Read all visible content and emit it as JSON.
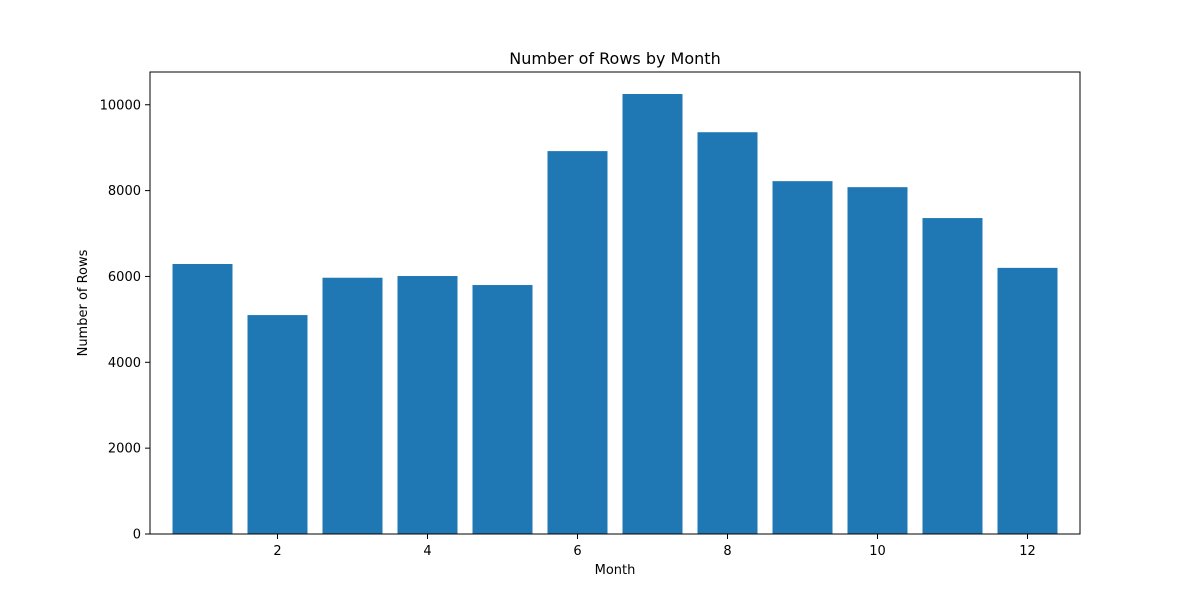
{
  "chart_data": {
    "type": "bar",
    "title": "Number of Rows by Month",
    "xlabel": "Month",
    "ylabel": "Number of Rows",
    "categories": [
      1,
      2,
      3,
      4,
      5,
      6,
      7,
      8,
      9,
      10,
      11,
      12
    ],
    "values": [
      6290,
      5100,
      5970,
      6010,
      5800,
      8920,
      10250,
      9360,
      8220,
      8080,
      7360,
      6200
    ],
    "xlim": [
      0.3,
      12.7
    ],
    "ylim": [
      0,
      10763
    ],
    "xticks": [
      2,
      4,
      6,
      8,
      10,
      12
    ],
    "yticks": [
      0,
      2000,
      4000,
      6000,
      8000,
      10000
    ],
    "bar_color": "#1f77b4",
    "grid": false,
    "legend": false
  }
}
